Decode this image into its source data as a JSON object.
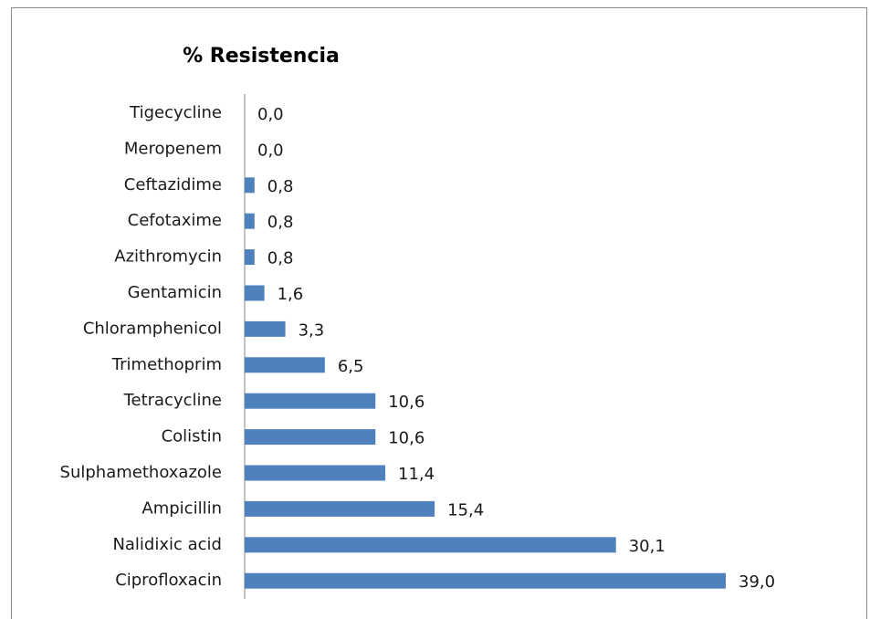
{
  "chart_data": {
    "type": "barh",
    "title": "% Resistencia",
    "categories": [
      "Tigecycline",
      "Meropenem",
      "Ceftazidime",
      "Cefotaxime",
      "Azithromycin",
      "Gentamicin",
      "Chloramphenicol",
      "Trimethoprim",
      "Tetracycline",
      "Colistin",
      "Sulphamethoxazole",
      "Ampicillin",
      "Nalidixic acid",
      "Ciprofloxacin"
    ],
    "values": [
      0,
      0,
      0.8,
      0.8,
      0.8,
      1.6,
      3.3,
      6.5,
      10.6,
      10.6,
      11.4,
      15.4,
      30.1,
      39.0
    ],
    "value_labels": [
      "0,0",
      "0,0",
      "0,8",
      "0,8",
      "0,8",
      "1,6",
      "3,3",
      "6,5",
      "10,6",
      "10,6",
      "11,4",
      "15,4",
      "30,1",
      "39,0"
    ],
    "color": "#4f81bd"
  }
}
